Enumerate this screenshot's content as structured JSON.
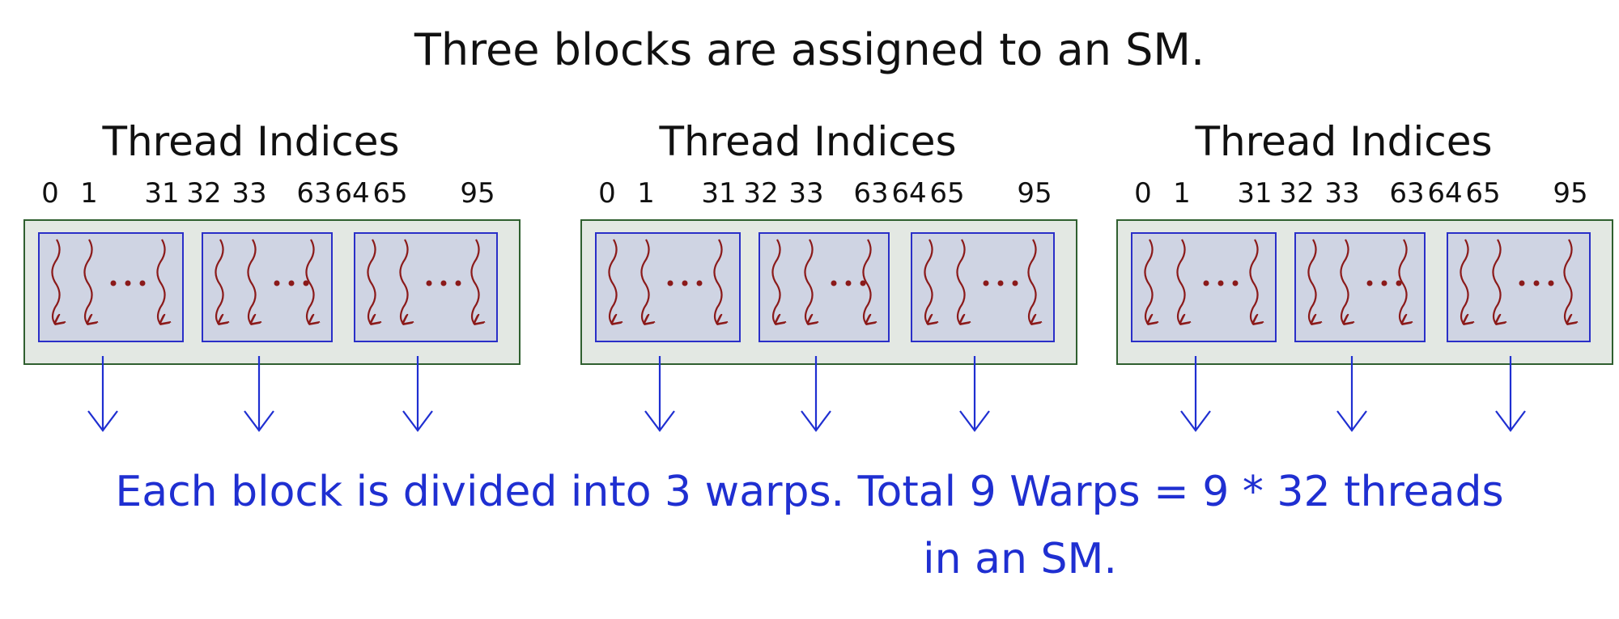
{
  "title": "Three blocks are assigned to an SM.",
  "block_header": "Thread Indices",
  "index_labels": [
    "0",
    "1",
    "31",
    "32",
    "33",
    "63",
    "64",
    "65",
    "95"
  ],
  "warp_ellipsis": "...",
  "caption_line1": "Each block is divided into 3 warps. Total 9 Warps = 9 * 32 threads",
  "caption_line2": "in an SM.",
  "colors": {
    "ink": "#111111",
    "blue_ink": "#1f2fd1",
    "block_fill": "#e3e8e3",
    "block_border": "#2f5f2f",
    "warp_fill": "#cfd4e3",
    "warp_border": "#2a2fc8",
    "thread_arrow": "#8b1a1a"
  }
}
